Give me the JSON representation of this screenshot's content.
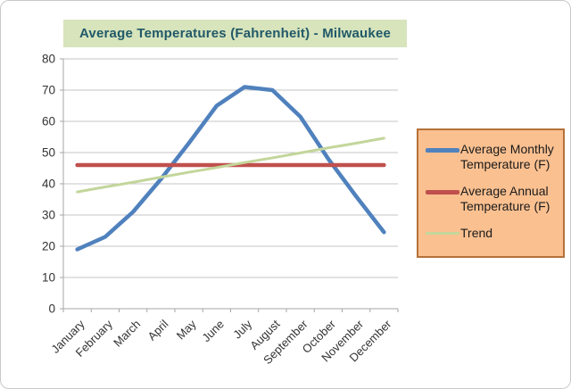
{
  "window": {
    "bg": "#FFFFFF",
    "border_color": "#C9C9C9"
  },
  "chart_data": {
    "type": "line",
    "title": "Average Temperatures (Fahrenheit) - Milwaukee",
    "title_color": "#215968",
    "title_bg": "#D7E4BC",
    "categories": [
      "January",
      "February",
      "March",
      "April",
      "May",
      "June",
      "July",
      "August",
      "September",
      "October",
      "November",
      "December"
    ],
    "series": [
      {
        "name": "Average Monthly Temperature (F)",
        "color": "#4F81BD",
        "stroke_width": 4.5,
        "values": [
          19,
          23,
          31,
          41.5,
          53,
          65,
          71,
          70,
          61.5,
          48,
          36,
          24.5
        ]
      },
      {
        "name": "Average Annual Temperature (F)",
        "color": "#C0504D",
        "stroke_width": 4.5,
        "values": [
          46,
          46,
          46,
          46,
          46,
          46,
          46,
          46,
          46,
          46,
          46,
          46
        ]
      },
      {
        "name": "Trend",
        "color": "#C3D69B",
        "stroke_width": 3,
        "values": [
          37.4,
          39.0,
          40.5,
          42.1,
          43.7,
          45.2,
          46.8,
          48.3,
          49.9,
          51.5,
          53.0,
          54.6
        ]
      }
    ],
    "ylim": [
      0,
      80
    ],
    "yticks": [
      0,
      10,
      20,
      30,
      40,
      50,
      60,
      70,
      80
    ],
    "grid": true,
    "legend_position": "right",
    "gridline_color": "#C5C5C5",
    "axis_color": "#A6A6A6",
    "tick_label_color": "#333333"
  },
  "legend": {
    "bg": "#FAC090",
    "border_color": "#B5713A"
  }
}
